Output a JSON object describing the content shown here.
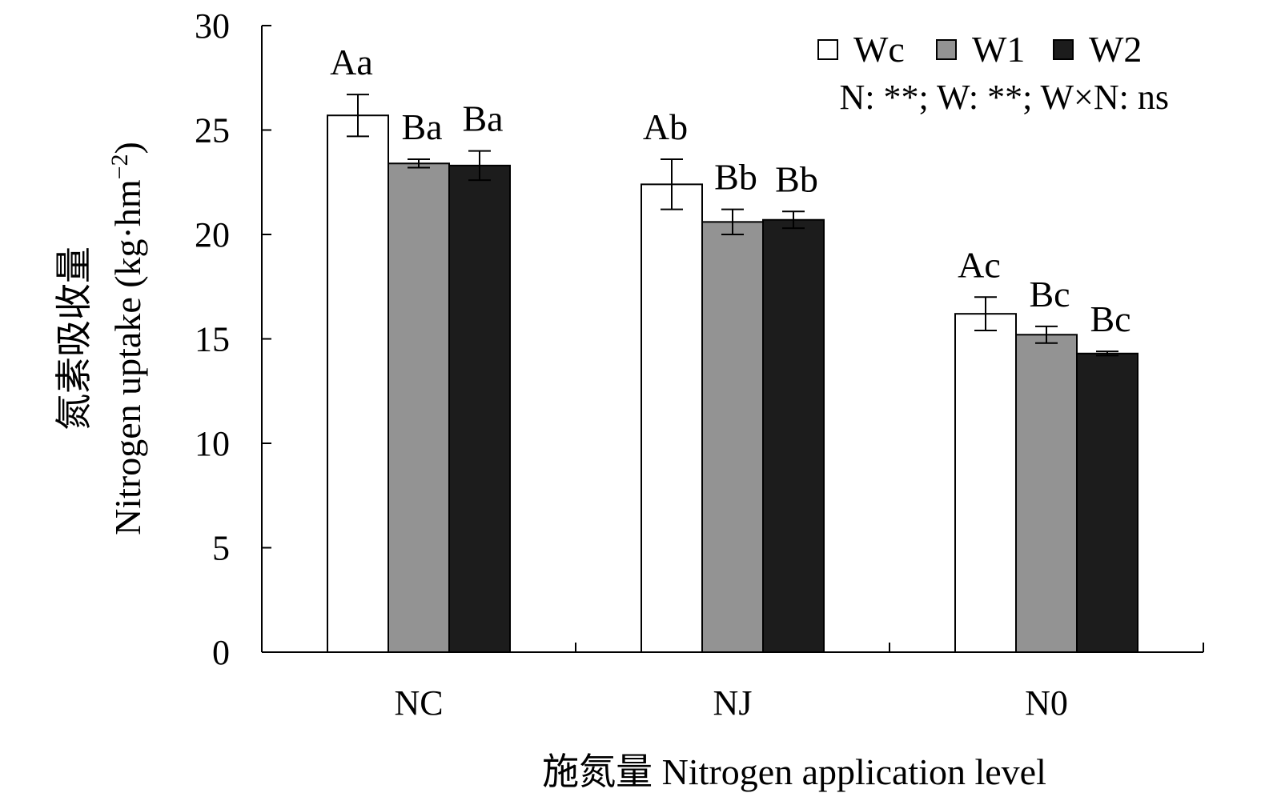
{
  "chart_data": {
    "type": "bar",
    "categories": [
      "NC",
      "NJ",
      "N0"
    ],
    "series": [
      {
        "name": "Wc",
        "color": "#ffffff",
        "values": [
          25.7,
          22.4,
          16.2
        ],
        "errors": [
          1.0,
          1.2,
          0.8
        ],
        "labels": [
          "Aa",
          "Ab",
          "Ac"
        ]
      },
      {
        "name": "W1",
        "color": "#939393",
        "values": [
          23.4,
          20.6,
          15.2
        ],
        "errors": [
          0.2,
          0.6,
          0.4
        ],
        "labels": [
          "Ba",
          "Bb",
          "Bc"
        ]
      },
      {
        "name": "W2",
        "color": "#1c1c1c",
        "values": [
          23.3,
          20.7,
          14.3
        ],
        "errors": [
          0.7,
          0.4,
          0.1
        ],
        "labels": [
          "Ba",
          "Bb",
          "Bc"
        ]
      }
    ],
    "ylim": [
      0,
      30
    ],
    "yticks": [
      0,
      5,
      10,
      15,
      20,
      25,
      30
    ],
    "ylabel_cn": "氮素吸收量",
    "ylabel_en": "Nitrogen uptake (kg·hm",
    "ylabel_unit_sup": "−2",
    "ylabel_unit_close": ")",
    "xlabel": "施氮量 Nitrogen application level",
    "annotation": "N: **; W: **; W×N: ns",
    "legend_position": "top-right",
    "grid": false
  }
}
